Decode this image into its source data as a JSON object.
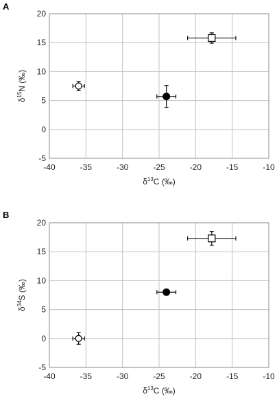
{
  "chart_data": [
    {
      "panel": "A",
      "type": "scatter",
      "xlabel_parts": [
        "δ",
        "13",
        "C (‰)"
      ],
      "ylabel_parts": [
        "δ",
        "15",
        "N (‰)"
      ],
      "xlim": [
        -40,
        -10
      ],
      "ylim": [
        -5,
        20
      ],
      "xticks": [
        -40,
        -35,
        -30,
        -25,
        -20,
        -15,
        -10
      ],
      "yticks": [
        -5,
        0,
        5,
        10,
        15,
        20
      ],
      "grid": true,
      "points": [
        {
          "x": -36.0,
          "y": 7.5,
          "xerr": 0.8,
          "yerr": 0.8,
          "marker": "open-circle"
        },
        {
          "x": -24.0,
          "y": 5.7,
          "xerr": 1.3,
          "yerr": 1.9,
          "marker": "filled-circle"
        },
        {
          "x": -17.8,
          "y": 15.8,
          "xerr": 3.3,
          "yerr": 0.9,
          "marker": "open-square"
        }
      ]
    },
    {
      "panel": "B",
      "type": "scatter",
      "xlabel_parts": [
        "δ",
        "13",
        "C (‰)"
      ],
      "ylabel_parts": [
        "δ",
        "34",
        "S (‰)"
      ],
      "xlim": [
        -40,
        -10
      ],
      "ylim": [
        -5,
        20
      ],
      "xticks": [
        -40,
        -35,
        -30,
        -25,
        -20,
        -15,
        -10
      ],
      "yticks": [
        -5,
        0,
        5,
        10,
        15,
        20
      ],
      "grid": true,
      "points": [
        {
          "x": -36.0,
          "y": 0.0,
          "xerr": 0.8,
          "yerr": 1.0,
          "marker": "open-circle"
        },
        {
          "x": -24.0,
          "y": 8.0,
          "xerr": 1.3,
          "yerr": 0.3,
          "marker": "filled-circle"
        },
        {
          "x": -17.8,
          "y": 17.3,
          "xerr": 3.3,
          "yerr": 1.2,
          "marker": "open-square"
        }
      ]
    }
  ]
}
